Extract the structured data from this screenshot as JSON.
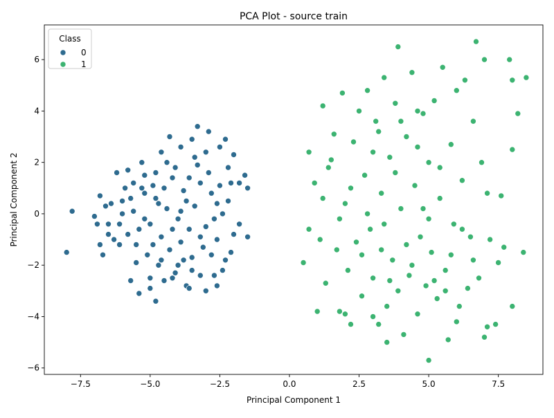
{
  "chart_data": {
    "type": "scatter",
    "title": "PCA Plot - source train",
    "xlabel": "Principal Component 1",
    "ylabel": "Principal Component 2",
    "xlim": [
      -8.8,
      9.1
    ],
    "ylim": [
      -6.25,
      7.35
    ],
    "xticks": [
      -7.5,
      -5.0,
      -2.5,
      0.0,
      2.5,
      5.0,
      7.5
    ],
    "xtick_labels": [
      "−7.5",
      "−5.0",
      "−2.5",
      "0.0",
      "2.5",
      "5.0",
      "7.5"
    ],
    "yticks": [
      -6,
      -4,
      -2,
      0,
      2,
      4,
      6
    ],
    "ytick_labels": [
      "−6",
      "−4",
      "−2",
      "0",
      "2",
      "4",
      "6"
    ],
    "grid": false,
    "legend": {
      "title": "Class",
      "placement": "top-left"
    },
    "series": [
      {
        "name": "0",
        "color": "#2e6b8f",
        "points": [
          [
            -8.0,
            -1.5
          ],
          [
            -7.8,
            0.1
          ],
          [
            -7.0,
            -0.1
          ],
          [
            -6.9,
            -0.4
          ],
          [
            -6.8,
            0.7
          ],
          [
            -6.8,
            -1.2
          ],
          [
            -6.7,
            -1.6
          ],
          [
            -6.6,
            0.3
          ],
          [
            -6.5,
            -0.4
          ],
          [
            -6.4,
            0.4
          ],
          [
            -6.2,
            1.6
          ],
          [
            -6.1,
            -1.2
          ],
          [
            -6.0,
            0.5
          ],
          [
            -5.9,
            1.0
          ],
          [
            -5.8,
            1.7
          ],
          [
            -5.7,
            -2.6
          ],
          [
            -5.6,
            0.1
          ],
          [
            -5.5,
            -1.9
          ],
          [
            -5.4,
            -3.1
          ],
          [
            -5.3,
            2.0
          ],
          [
            -5.2,
            1.5
          ],
          [
            -5.0,
            -2.9
          ],
          [
            -5.0,
            -2.5
          ],
          [
            -4.9,
            1.1
          ],
          [
            -4.8,
            -3.4
          ],
          [
            -4.7,
            -2.0
          ],
          [
            -4.6,
            2.4
          ],
          [
            -4.5,
            -2.6
          ],
          [
            -4.3,
            3.0
          ],
          [
            -4.2,
            -2.5
          ],
          [
            -4.0,
            -2.0
          ],
          [
            -3.9,
            2.6
          ],
          [
            -3.7,
            -2.8
          ],
          [
            -3.6,
            -2.9
          ],
          [
            -3.5,
            2.9
          ],
          [
            -3.3,
            3.4
          ],
          [
            -3.2,
            -2.4
          ],
          [
            -3.0,
            -3.0
          ],
          [
            -2.9,
            3.2
          ],
          [
            -2.7,
            -2.4
          ],
          [
            -2.6,
            -2.8
          ],
          [
            -2.5,
            2.6
          ],
          [
            -2.4,
            -2.2
          ],
          [
            -2.3,
            2.9
          ],
          [
            -2.2,
            0.5
          ],
          [
            -2.1,
            -1.5
          ],
          [
            -2.0,
            2.3
          ],
          [
            -1.8,
            -0.4
          ],
          [
            -1.6,
            1.5
          ],
          [
            -1.5,
            1.0
          ],
          [
            -1.5,
            -0.9
          ],
          [
            -1.8,
            1.2
          ],
          [
            -2.0,
            -0.8
          ],
          [
            -2.2,
            1.8
          ],
          [
            -2.4,
            0.0
          ],
          [
            -2.6,
            -1.0
          ],
          [
            -2.8,
            0.8
          ],
          [
            -3.0,
            -0.5
          ],
          [
            -3.2,
            1.2
          ],
          [
            -3.4,
            0.3
          ],
          [
            -3.6,
            -0.6
          ],
          [
            -3.8,
            0.9
          ],
          [
            -4.0,
            -0.2
          ],
          [
            -4.2,
            1.4
          ],
          [
            -4.4,
            0.2
          ],
          [
            -4.6,
            -0.9
          ],
          [
            -4.8,
            0.6
          ],
          [
            -5.0,
            -0.4
          ],
          [
            -5.2,
            0.8
          ],
          [
            -5.4,
            -0.6
          ],
          [
            -5.6,
            1.2
          ],
          [
            -5.8,
            -0.8
          ],
          [
            -6.0,
            0.0
          ],
          [
            -6.3,
            -1.0
          ],
          [
            -6.5,
            -0.8
          ],
          [
            -5.1,
            -1.6
          ],
          [
            -4.9,
            -1.2
          ],
          [
            -4.7,
            0.4
          ],
          [
            -4.5,
            1.0
          ],
          [
            -4.3,
            -1.4
          ],
          [
            -4.1,
            1.8
          ],
          [
            -3.9,
            -1.1
          ],
          [
            -3.7,
            0.5
          ],
          [
            -3.5,
            -1.7
          ],
          [
            -3.3,
            1.9
          ],
          [
            -3.1,
            -1.3
          ],
          [
            -2.9,
            1.6
          ],
          [
            -2.7,
            -0.2
          ],
          [
            -2.5,
            1.1
          ],
          [
            -2.3,
            -1.8
          ],
          [
            -3.4,
            2.2
          ],
          [
            -3.8,
            -1.8
          ],
          [
            -4.4,
            2.0
          ],
          [
            -5.3,
            1.0
          ],
          [
            -5.5,
            -1.2
          ],
          [
            -4.6,
            -1.8
          ],
          [
            -3.0,
            2.4
          ],
          [
            -2.8,
            -1.6
          ],
          [
            -3.6,
            1.4
          ],
          [
            -4.2,
            -0.6
          ],
          [
            -4.8,
            1.6
          ],
          [
            -5.2,
            -0.2
          ],
          [
            -3.2,
            -0.9
          ],
          [
            -2.6,
            0.4
          ],
          [
            -3.9,
            0.1
          ],
          [
            -4.1,
            -2.3
          ],
          [
            -3.5,
            -2.2
          ],
          [
            -5.7,
            0.6
          ],
          [
            -6.1,
            -0.4
          ],
          [
            -2.1,
            1.2
          ]
        ]
      },
      {
        "name": "1",
        "color": "#3cb371",
        "points": [
          [
            0.5,
            -1.9
          ],
          [
            0.7,
            -0.6
          ],
          [
            0.7,
            2.4
          ],
          [
            0.9,
            1.2
          ],
          [
            1.0,
            -3.8
          ],
          [
            1.1,
            -1.0
          ],
          [
            1.2,
            0.6
          ],
          [
            1.2,
            4.2
          ],
          [
            1.3,
            -2.7
          ],
          [
            1.4,
            1.8
          ],
          [
            1.6,
            3.1
          ],
          [
            1.7,
            -1.4
          ],
          [
            1.8,
            -3.8
          ],
          [
            1.9,
            4.7
          ],
          [
            2.0,
            0.4
          ],
          [
            2.1,
            -2.2
          ],
          [
            2.2,
            -4.3
          ],
          [
            2.3,
            2.8
          ],
          [
            2.4,
            -1.1
          ],
          [
            2.5,
            4.0
          ],
          [
            2.6,
            -3.2
          ],
          [
            2.7,
            1.5
          ],
          [
            2.8,
            4.8
          ],
          [
            2.9,
            -0.6
          ],
          [
            3.0,
            -2.5
          ],
          [
            3.1,
            3.6
          ],
          [
            3.2,
            -4.3
          ],
          [
            3.3,
            0.8
          ],
          [
            3.4,
            5.3
          ],
          [
            3.5,
            -3.6
          ],
          [
            3.5,
            -5.0
          ],
          [
            3.6,
            2.2
          ],
          [
            3.7,
            -1.8
          ],
          [
            3.8,
            4.3
          ],
          [
            3.9,
            6.5
          ],
          [
            3.9,
            -3.0
          ],
          [
            4.0,
            0.2
          ],
          [
            4.1,
            -4.7
          ],
          [
            4.2,
            3.0
          ],
          [
            4.3,
            -2.4
          ],
          [
            4.4,
            5.5
          ],
          [
            4.5,
            1.1
          ],
          [
            4.6,
            -3.9
          ],
          [
            4.7,
            -0.9
          ],
          [
            4.8,
            3.9
          ],
          [
            4.9,
            -2.8
          ],
          [
            5.0,
            -5.7
          ],
          [
            5.0,
            2.0
          ],
          [
            5.1,
            -1.5
          ],
          [
            5.2,
            4.4
          ],
          [
            5.3,
            -3.3
          ],
          [
            5.4,
            0.6
          ],
          [
            5.5,
            5.7
          ],
          [
            5.6,
            -2.2
          ],
          [
            5.7,
            -4.9
          ],
          [
            5.8,
            2.7
          ],
          [
            5.9,
            -0.4
          ],
          [
            6.0,
            4.8
          ],
          [
            6.1,
            -3.6
          ],
          [
            6.2,
            1.3
          ],
          [
            6.3,
            5.2
          ],
          [
            6.4,
            -2.9
          ],
          [
            6.5,
            -0.9
          ],
          [
            6.6,
            3.6
          ],
          [
            6.7,
            6.7
          ],
          [
            6.8,
            -2.5
          ],
          [
            6.9,
            2.0
          ],
          [
            7.0,
            6.0
          ],
          [
            7.1,
            -4.4
          ],
          [
            7.1,
            0.8
          ],
          [
            7.2,
            -1.0
          ],
          [
            7.4,
            -4.3
          ],
          [
            7.5,
            -1.9
          ],
          [
            7.6,
            0.7
          ],
          [
            7.7,
            -1.3
          ],
          [
            7.9,
            6.0
          ],
          [
            8.0,
            5.2
          ],
          [
            8.0,
            2.5
          ],
          [
            8.0,
            -3.6
          ],
          [
            8.2,
            3.9
          ],
          [
            8.4,
            -1.5
          ],
          [
            8.5,
            5.3
          ],
          [
            7.0,
            -4.8
          ],
          [
            6.0,
            -4.2
          ],
          [
            3.0,
            -4.0
          ],
          [
            2.0,
            -3.9
          ],
          [
            1.5,
            2.1
          ],
          [
            1.8,
            -0.2
          ],
          [
            2.2,
            1.0
          ],
          [
            2.6,
            -1.6
          ],
          [
            3.0,
            2.4
          ],
          [
            3.4,
            -0.4
          ],
          [
            3.8,
            1.6
          ],
          [
            4.2,
            -1.2
          ],
          [
            4.6,
            2.6
          ],
          [
            5.0,
            -0.2
          ],
          [
            5.4,
            1.8
          ],
          [
            5.8,
            -1.6
          ],
          [
            6.2,
            -0.6
          ],
          [
            4.4,
            -2.0
          ],
          [
            3.6,
            -2.6
          ],
          [
            4.8,
            0.2
          ],
          [
            5.2,
            -2.6
          ],
          [
            2.8,
            0.0
          ],
          [
            3.2,
            3.2
          ],
          [
            4.0,
            3.6
          ],
          [
            4.6,
            4.0
          ],
          [
            3.3,
            -1.4
          ],
          [
            5.6,
            -3.0
          ],
          [
            6.6,
            -1.8
          ]
        ]
      }
    ]
  }
}
